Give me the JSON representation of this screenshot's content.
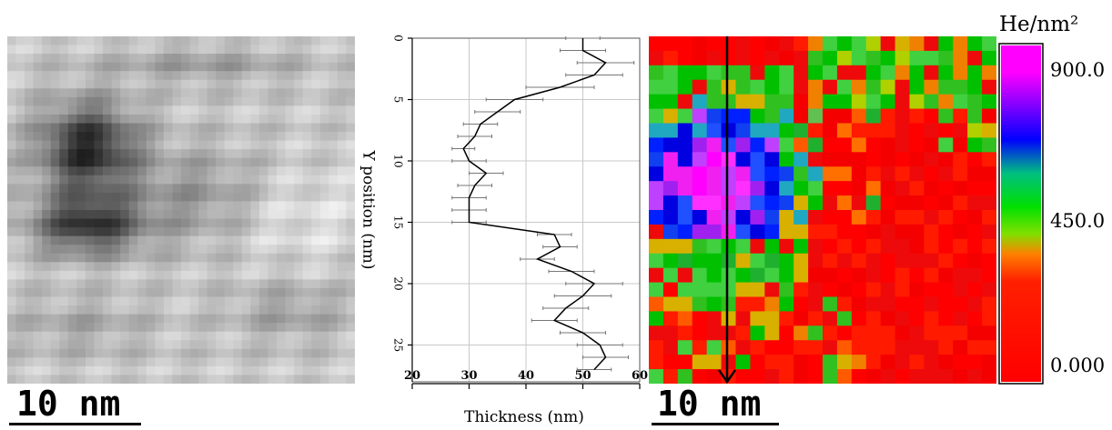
{
  "chart_data": [
    {
      "type": "heatmap",
      "panel": "tem-image",
      "colormap": "grayscale",
      "scale_bar": "10 nm"
    },
    {
      "type": "line",
      "xlabel": "Thickness (nm)",
      "ylabel": "Y position (nm)",
      "xlim": [
        20,
        60
      ],
      "ylim": [
        0,
        28
      ],
      "y_inverted": true,
      "x_ticks": [
        20,
        30,
        40,
        50,
        60
      ],
      "y_ticks": [
        0,
        5,
        10,
        15,
        20,
        25
      ],
      "grid": true,
      "series": [
        {
          "points": [
            {
              "y": 0,
              "x": 50,
              "err": 3
            },
            {
              "y": 1,
              "x": 50,
              "err": 4
            },
            {
              "y": 2,
              "x": 54,
              "err": 5
            },
            {
              "y": 3,
              "x": 52,
              "err": 5
            },
            {
              "y": 4,
              "x": 46,
              "err": 6
            },
            {
              "y": 5,
              "x": 38,
              "err": 5
            },
            {
              "y": 6,
              "x": 35,
              "err": 4
            },
            {
              "y": 7,
              "x": 32,
              "err": 3
            },
            {
              "y": 8,
              "x": 31,
              "err": 3
            },
            {
              "y": 9,
              "x": 29,
              "err": 2
            },
            {
              "y": 10,
              "x": 30,
              "err": 3
            },
            {
              "y": 11,
              "x": 33,
              "err": 3
            },
            {
              "y": 12,
              "x": 31,
              "err": 3
            },
            {
              "y": 13,
              "x": 30,
              "err": 3
            },
            {
              "y": 14,
              "x": 30,
              "err": 3
            },
            {
              "y": 15,
              "x": 30,
              "err": 3
            },
            {
              "y": 16,
              "x": 45,
              "err": 3
            },
            {
              "y": 17,
              "x": 46,
              "err": 3
            },
            {
              "y": 18,
              "x": 42,
              "err": 3
            },
            {
              "y": 19,
              "x": 48,
              "err": 4
            },
            {
              "y": 20,
              "x": 52,
              "err": 5
            },
            {
              "y": 21,
              "x": 50,
              "err": 5
            },
            {
              "y": 22,
              "x": 47,
              "err": 4
            },
            {
              "y": 23,
              "x": 45,
              "err": 4
            },
            {
              "y": 24,
              "x": 50,
              "err": 4
            },
            {
              "y": 25,
              "x": 53,
              "err": 4
            },
            {
              "y": 26,
              "x": 54,
              "err": 4
            },
            {
              "y": 27,
              "x": 52,
              "err": 3
            }
          ]
        }
      ]
    },
    {
      "type": "heatmap",
      "panel": "he-density-map",
      "colormap": "rainbow",
      "colorbar_title": "He/nm²",
      "colorbar_ticks": [
        "900.0",
        "450.0",
        "0.000"
      ],
      "vmin": 0,
      "vmax": 900,
      "scale_bar": "10 nm",
      "arrow_direction": "down"
    }
  ],
  "labels": {
    "left_scalebar": "10 nm",
    "right_scalebar": "10 nm",
    "colorbar_title": "He/nm²",
    "colorbar_tick_top": "900.0",
    "colorbar_tick_mid": "450.0",
    "colorbar_tick_bottom": "0.000",
    "profile_xlabel": "Thickness (nm)",
    "profile_ylabel": "Y position (nm)"
  }
}
